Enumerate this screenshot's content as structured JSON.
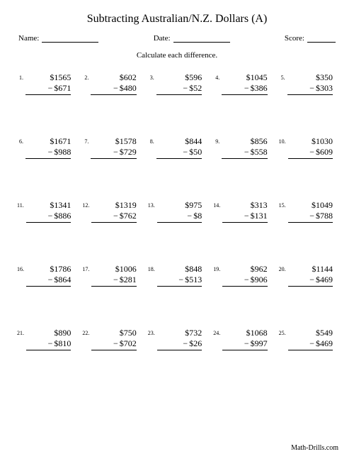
{
  "title": "Subtracting Australian/N.Z. Dollars (A)",
  "header": {
    "name_label": "Name:",
    "date_label": "Date:",
    "score_label": "Score:"
  },
  "instruction": "Calculate each difference.",
  "currency_symbol": "$",
  "minus_sign": "−",
  "problems": [
    {
      "n": "1.",
      "a": "$1565",
      "b": "$671"
    },
    {
      "n": "2.",
      "a": "$602",
      "b": "$480"
    },
    {
      "n": "3.",
      "a": "$596",
      "b": "$52"
    },
    {
      "n": "4.",
      "a": "$1045",
      "b": "$386"
    },
    {
      "n": "5.",
      "a": "$350",
      "b": "$303"
    },
    {
      "n": "6.",
      "a": "$1671",
      "b": "$988"
    },
    {
      "n": "7.",
      "a": "$1578",
      "b": "$729"
    },
    {
      "n": "8.",
      "a": "$844",
      "b": "$50"
    },
    {
      "n": "9.",
      "a": "$856",
      "b": "$558"
    },
    {
      "n": "10.",
      "a": "$1030",
      "b": "$609"
    },
    {
      "n": "11.",
      "a": "$1341",
      "b": "$886"
    },
    {
      "n": "12.",
      "a": "$1319",
      "b": "$762"
    },
    {
      "n": "13.",
      "a": "$975",
      "b": "$8"
    },
    {
      "n": "14.",
      "a": "$313",
      "b": "$131"
    },
    {
      "n": "15.",
      "a": "$1049",
      "b": "$788"
    },
    {
      "n": "16.",
      "a": "$1786",
      "b": "$864"
    },
    {
      "n": "17.",
      "a": "$1006",
      "b": "$281"
    },
    {
      "n": "18.",
      "a": "$848",
      "b": "$513"
    },
    {
      "n": "19.",
      "a": "$962",
      "b": "$906"
    },
    {
      "n": "20.",
      "a": "$1144",
      "b": "$469"
    },
    {
      "n": "21.",
      "a": "$890",
      "b": "$810"
    },
    {
      "n": "22.",
      "a": "$750",
      "b": "$702"
    },
    {
      "n": "23.",
      "a": "$732",
      "b": "$26"
    },
    {
      "n": "24.",
      "a": "$1068",
      "b": "$997"
    },
    {
      "n": "25.",
      "a": "$549",
      "b": "$469"
    }
  ],
  "footer": "Math-Drills.com",
  "style": {
    "page_bg": "#ffffff",
    "text_color": "#000000",
    "title_fontsize": 16,
    "body_fontsize": 12,
    "small_fontsize": 8,
    "font_family": "Times New Roman"
  }
}
